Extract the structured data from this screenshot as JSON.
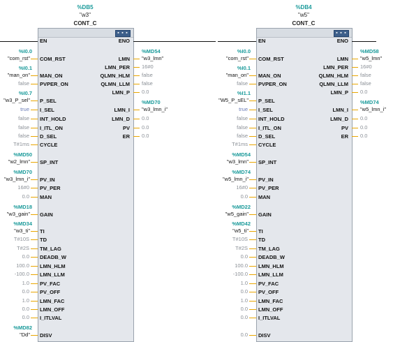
{
  "blocks": [
    {
      "db": "%DB5",
      "instance": "\"w3\"",
      "type": "CONT_C",
      "en": "EN",
      "eno": "ENO",
      "inputs": [
        {
          "pin": "COM_RST",
          "tag": "%I0.0",
          "symbol": "\"com_rst\""
        },
        {
          "pin": "MAN_ON",
          "tag": "%I0.1",
          "symbol": "\"man_on\""
        },
        {
          "pin": "PVPER_ON",
          "value": "false"
        },
        {
          "pin": "P_SEL",
          "tag": "%I0.7",
          "symbol": "\"w3_P_sel\""
        },
        {
          "pin": "I_SEL",
          "value": "true"
        },
        {
          "pin": "INT_HOLD",
          "value": "false"
        },
        {
          "pin": "I_ITL_ON",
          "value": "false"
        },
        {
          "pin": "D_SEL",
          "value": "false"
        },
        {
          "pin": "CYCLE",
          "value": "T#1ms"
        },
        {
          "pin": "SP_INT",
          "tag": "%MD50",
          "symbol": "\"w2_lmn\""
        },
        {
          "pin": "PV_IN",
          "tag": "%MD70",
          "symbol": "\"w3_lmn_i\""
        },
        {
          "pin": "PV_PER",
          "value": "16#0"
        },
        {
          "pin": "MAN",
          "value": "0.0"
        },
        {
          "pin": "GAIN",
          "tag": "%MD18",
          "symbol": "\"w3_gain\""
        },
        {
          "pin": "TI",
          "tag": "%MD34",
          "symbol": "\"w3_ti\""
        },
        {
          "pin": "TD",
          "value": "T#10S"
        },
        {
          "pin": "TM_LAG",
          "value": "T#2S"
        },
        {
          "pin": "DEADB_W",
          "value": "0.0"
        },
        {
          "pin": "LMN_HLM",
          "value": "100.0"
        },
        {
          "pin": "LMN_LLM",
          "value": "-100.0"
        },
        {
          "pin": "PV_FAC",
          "value": "1.0"
        },
        {
          "pin": "PV_OFF",
          "value": "0.0"
        },
        {
          "pin": "LMN_FAC",
          "value": "1.0"
        },
        {
          "pin": "LMN_OFF",
          "value": "0.0"
        },
        {
          "pin": "I_ITLVAL",
          "value": "0.0"
        },
        {
          "pin": "DISV",
          "tag": "%MD82",
          "symbol": "\"Dd\""
        }
      ],
      "outputs": [
        {
          "pin": "LMN",
          "tag": "%MD54",
          "symbol": "\"w3_lmn\""
        },
        {
          "pin": "LMN_PER",
          "value": "16#0"
        },
        {
          "pin": "QLMN_HLM",
          "value": "false"
        },
        {
          "pin": "QLMN_LLM",
          "value": "false"
        },
        {
          "pin": "LMN_P",
          "value": "0.0"
        },
        {
          "pin": "LMN_I",
          "tag": "%MD70",
          "symbol": "\"w3_lmn_i\""
        },
        {
          "pin": "LMN_D",
          "value": "0.0"
        },
        {
          "pin": "PV",
          "value": "0.0"
        },
        {
          "pin": "ER",
          "value": "0.0"
        }
      ]
    },
    {
      "db": "%DB4",
      "instance": "\"w5\"",
      "type": "CONT_C",
      "en": "EN",
      "eno": "ENO",
      "inputs": [
        {
          "pin": "COM_RST",
          "tag": "%I0.0",
          "symbol": "\"com_rst\""
        },
        {
          "pin": "MAN_ON",
          "tag": "%I0.1",
          "symbol": "\"man_on\""
        },
        {
          "pin": "PVPER_ON",
          "value": "false"
        },
        {
          "pin": "P_SEL",
          "tag": "%I1.1",
          "symbol": "\"W5_P_sEL\""
        },
        {
          "pin": "I_SEL",
          "value": "true"
        },
        {
          "pin": "INT_HOLD",
          "value": "false"
        },
        {
          "pin": "I_ITL_ON",
          "value": "false"
        },
        {
          "pin": "D_SEL",
          "value": "false"
        },
        {
          "pin": "CYCLE",
          "value": "T#1ms"
        },
        {
          "pin": "SP_INT",
          "tag": "%MD54",
          "symbol": "\"w3_lmn\""
        },
        {
          "pin": "PV_IN",
          "tag": "%MD74",
          "symbol": "\"w5_lmn_i\""
        },
        {
          "pin": "PV_PER",
          "value": "16#0"
        },
        {
          "pin": "MAN",
          "value": "0.0"
        },
        {
          "pin": "GAIN",
          "tag": "%MD22",
          "symbol": "\"w5_gain\""
        },
        {
          "pin": "TI",
          "tag": "%MD42",
          "symbol": "\"w5_ti\""
        },
        {
          "pin": "TD",
          "value": "T#10S"
        },
        {
          "pin": "TM_LAG",
          "value": "T#2S"
        },
        {
          "pin": "DEADB_W",
          "value": "0.0"
        },
        {
          "pin": "LMN_HLM",
          "value": "100.0"
        },
        {
          "pin": "LMN_LLM",
          "value": "-100.0"
        },
        {
          "pin": "PV_FAC",
          "value": "1.0"
        },
        {
          "pin": "PV_OFF",
          "value": "0.0"
        },
        {
          "pin": "LMN_FAC",
          "value": "1.0"
        },
        {
          "pin": "LMN_OFF",
          "value": "0.0"
        },
        {
          "pin": "I_ITLVAL",
          "value": "0.0"
        },
        {
          "pin": "DISV",
          "value": "0.0"
        }
      ],
      "outputs": [
        {
          "pin": "LMN",
          "tag": "%MD58",
          "symbol": "\"w5_lmn\""
        },
        {
          "pin": "LMN_PER",
          "value": "16#0"
        },
        {
          "pin": "QLMN_HLM",
          "value": "false"
        },
        {
          "pin": "QLMN_LLM",
          "value": "false"
        },
        {
          "pin": "LMN_P",
          "value": "0.0"
        },
        {
          "pin": "LMN_I",
          "tag": "%MD74",
          "symbol": "\"w5_lmn_i\""
        },
        {
          "pin": "LMN_D",
          "value": "0.0"
        },
        {
          "pin": "PV",
          "value": "0.0"
        },
        {
          "pin": "ER",
          "value": "0.0"
        }
      ]
    }
  ],
  "colors": {
    "tag": "#1a9a9a",
    "value": "#8a8f96",
    "true_value": "#6c7db8",
    "wire": "#e8a500",
    "block_bg": "#e4e7ec"
  }
}
